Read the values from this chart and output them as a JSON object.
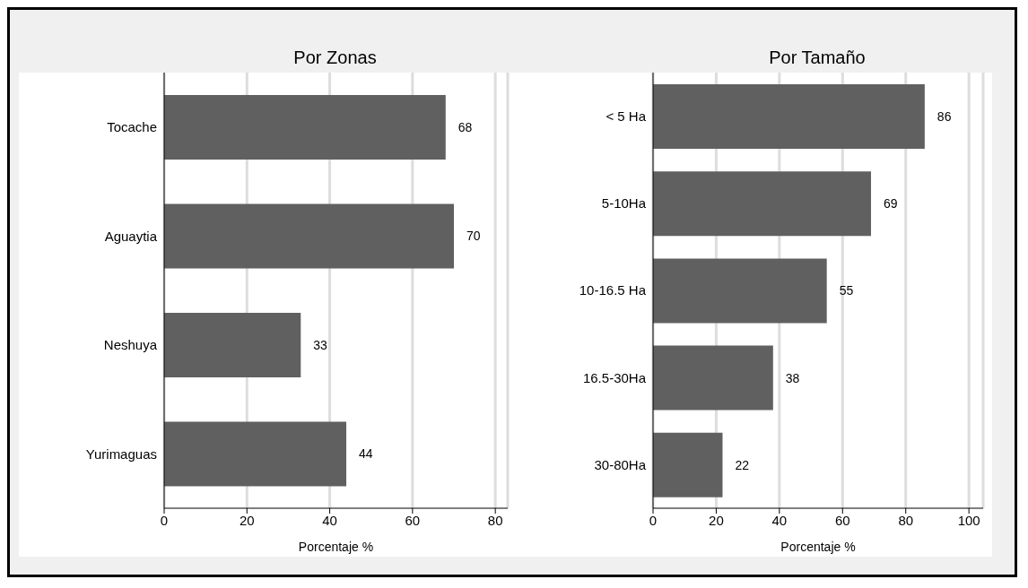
{
  "chart_data": [
    {
      "type": "bar",
      "orientation": "horizontal",
      "title": "Por Zonas",
      "xlabel": "Porcentaje %",
      "categories": [
        "Tocache",
        "Aguaytia",
        "Neshuya",
        "Yurimaguas"
      ],
      "values": [
        68,
        70,
        33,
        44
      ],
      "color": "#606060",
      "xlim": [
        0,
        83
      ],
      "xticks": [
        0,
        20,
        40,
        60,
        80
      ],
      "grid": "x",
      "data_labels": true
    },
    {
      "type": "bar",
      "orientation": "horizontal",
      "title": "Por Tamaño",
      "xlabel": "Porcentaje %",
      "categories": [
        "< 5 Ha",
        "5-10Ha",
        "10-16.5 Ha",
        "16.5-30Ha",
        "30-80Ha"
      ],
      "values": [
        86,
        69,
        55,
        38,
        22
      ],
      "color": "#606060",
      "xlim": [
        0,
        104.5
      ],
      "xticks": [
        0,
        20,
        40,
        60,
        80,
        100
      ],
      "grid": "x",
      "data_labels": true
    }
  ]
}
